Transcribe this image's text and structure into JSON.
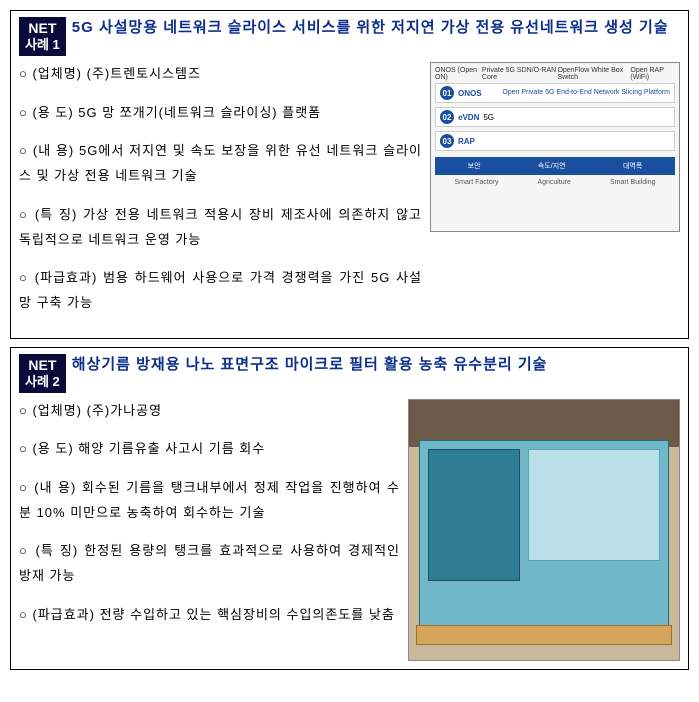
{
  "cases": [
    {
      "badge_line1": "NET",
      "badge_line2": "사례 1",
      "title": "5G 사설망용 네트워크 슬라이스 서비스를 위한 저지연 가상 전용 유선네트워크 생성 기술",
      "bullets": [
        "(업체명) (주)트렌토시스템즈",
        "(용  도) 5G 망 쪼개기(네트워크 슬라이싱) 플랫폼",
        "(내   용) 5G에서 저지연 및 속도 보장을 위한 유선 네트워크 슬라이스 및 가상 전용 네트워크 기술",
        "(특  징) 가상 전용 네트워크 적용시 장비 제조사에 의존하지 않고 독립적으로 네트워크 운영 가능",
        "(파급효과) 범용 하드웨어 사용으로 가격 경쟁력을 가진 5G 사설망 구축 가능"
      ],
      "diagram": {
        "top_labels": [
          "ONOS (Open ON)",
          "Private 5G SDN/O-RAN Core",
          "OpenFlow White Box Switch",
          "Open RAP (WiFi)"
        ],
        "rows": [
          {
            "num": "01",
            "label": "ONOS",
            "desc": ""
          },
          {
            "num": "02",
            "label": "eVDN",
            "desc": "5G"
          },
          {
            "num": "03",
            "label": "RAP",
            "desc": ""
          }
        ],
        "side_title": "Open Private 5G End-to-End Network Slicing Platform",
        "bottom_labels": [
          "보안",
          "속도/지연",
          "대역폭"
        ],
        "icons": [
          "Smart Factory",
          "Agriculture",
          "Smart Building"
        ]
      }
    },
    {
      "badge_line1": "NET",
      "badge_line2": "사례 2",
      "title": "해상기름 방재용 나노 표면구조 마이크로 필터 활용 농축 유수분리 기술",
      "bullets": [
        "(업체명) (주)가나공영",
        "(용   도) 해양 기름유출 사고시 기름 회수",
        "(내  용) 회수된 기름을 탱크내부에서 정제 작업을 진행하여 수분 10% 미만으로 농축하여 회수하는 기술",
        "(특 징) 한정된 용량의 탱크를 효과적으로 사용하여 경제적인 방재 가능",
        "(파급효과) 전량 수입하고 있는 핵심장비의 수입의존도를 낮춤"
      ]
    }
  ]
}
